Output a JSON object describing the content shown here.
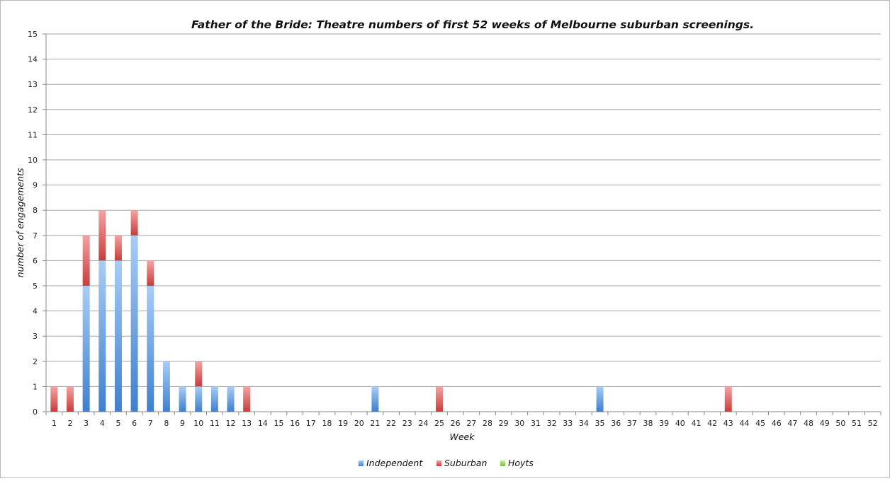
{
  "chart_data": {
    "type": "bar",
    "stacked": true,
    "title": "Father of the Bride: Theatre numbers of first 52 weeks of Melbourne suburban screenings.",
    "xlabel": "Week",
    "ylabel": "number of engagements",
    "ylim": [
      0,
      15
    ],
    "grid": true,
    "legend_position": "bottom",
    "categories": [
      "1",
      "2",
      "3",
      "4",
      "5",
      "6",
      "7",
      "8",
      "9",
      "10",
      "11",
      "12",
      "13",
      "14",
      "15",
      "16",
      "17",
      "18",
      "19",
      "20",
      "21",
      "22",
      "23",
      "24",
      "25",
      "26",
      "27",
      "28",
      "29",
      "30",
      "31",
      "32",
      "33",
      "34",
      "35",
      "36",
      "37",
      "38",
      "39",
      "40",
      "41",
      "42",
      "43",
      "44",
      "45",
      "46",
      "47",
      "48",
      "49",
      "50",
      "51",
      "52"
    ],
    "series": [
      {
        "name": "Independent",
        "color": "#5b9bd5",
        "values": [
          0,
          0,
          5,
          6,
          6,
          7,
          5,
          2,
          1,
          1,
          1,
          1,
          0,
          0,
          0,
          0,
          0,
          0,
          0,
          0,
          1,
          0,
          0,
          0,
          0,
          0,
          0,
          0,
          0,
          0,
          0,
          0,
          0,
          0,
          1,
          0,
          0,
          0,
          0,
          0,
          0,
          0,
          0,
          0,
          0,
          0,
          0,
          0,
          0,
          0,
          0,
          0
        ]
      },
      {
        "name": "Suburban",
        "color": "#e05a5a",
        "values": [
          1,
          1,
          2,
          2,
          1,
          1,
          1,
          0,
          0,
          1,
          0,
          0,
          1,
          0,
          0,
          0,
          0,
          0,
          0,
          0,
          0,
          0,
          0,
          0,
          1,
          0,
          0,
          0,
          0,
          0,
          0,
          0,
          0,
          0,
          0,
          0,
          0,
          0,
          0,
          0,
          0,
          0,
          1,
          0,
          0,
          0,
          0,
          0,
          0,
          0,
          0,
          0
        ]
      },
      {
        "name": "Hoyts",
        "color": "#9bd35a",
        "values": [
          0,
          0,
          0,
          0,
          0,
          0,
          0,
          0,
          0,
          0,
          0,
          0,
          0,
          0,
          0,
          0,
          0,
          0,
          0,
          0,
          0,
          0,
          0,
          0,
          0,
          0,
          0,
          0,
          0,
          0,
          0,
          0,
          0,
          0,
          0,
          0,
          0,
          0,
          0,
          0,
          0,
          0,
          0,
          0,
          0,
          0,
          0,
          0,
          0,
          0,
          0,
          0
        ]
      }
    ]
  }
}
